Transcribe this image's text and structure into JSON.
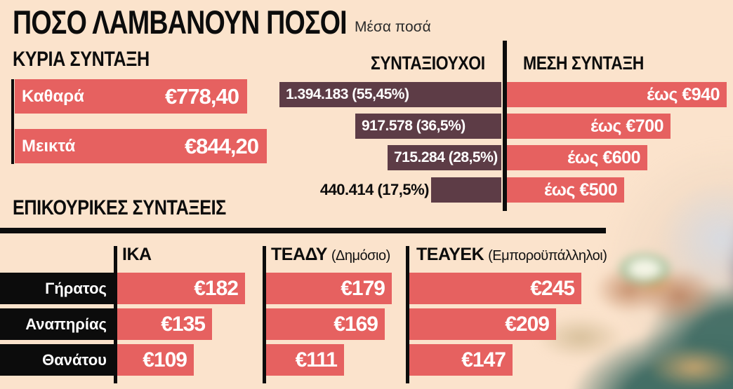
{
  "title": "ΠΟΣΟ ΛΑΜΒΑΝΟΥΝ ΠΟΣΟΙ",
  "subtitle": "Μέσα ποσά",
  "colors": {
    "background": "#fbe3cc",
    "bar_salmon": "#e66160",
    "bar_maroon": "#5d3c46",
    "black": "#0c0c0c",
    "text_on_bar": "#ffffff"
  },
  "photo": {
    "alt": "hands counting euro banknotes over a table"
  },
  "main_pension": {
    "heading": "ΚΥΡΙΑ ΣΥΝΤΑΞΗ",
    "rows": [
      {
        "label": "Καθαρά",
        "value": "€778,40",
        "value_num": 778.4
      },
      {
        "label": "Μεικτά",
        "value": "€844,20",
        "value_num": 844.2
      }
    ]
  },
  "distribution": {
    "col_pensioners": "ΣΥΝΤΑΞΙΟΥΧΟΙ",
    "col_avg": "ΜΕΣΗ ΣΥΝΤΑΞΗ",
    "rows": [
      {
        "pensioners": "1.394.183 (55,45%)",
        "pct_num": 55.45,
        "avg": "έως €940",
        "eur_num": 940
      },
      {
        "pensioners": "917.578 (36,5%)",
        "pct_num": 36.5,
        "avg": "έως €700",
        "eur_num": 700
      },
      {
        "pensioners": "715.284 (28,5%)",
        "pct_num": 28.5,
        "avg": "έως €600",
        "eur_num": 600
      },
      {
        "pensioners": "440.414 (17,5%)",
        "pct_num": 17.5,
        "avg": "έως €500",
        "eur_num": 500
      }
    ]
  },
  "supplementary": {
    "heading": "ΕΠΙΚΟΥΡΙΚΕΣ ΣΥΝΤΑΞΕΙΣ",
    "row_labels": [
      "Γήρατος",
      "Αναπηρίας",
      "Θανάτου"
    ],
    "columns": [
      {
        "name": "ΙΚΑ",
        "note": "",
        "values": [
          "€182",
          "€135",
          "€109"
        ],
        "values_num": [
          182,
          135,
          109
        ]
      },
      {
        "name": "ΤΕΑΔΥ",
        "note": "(Δημόσιο)",
        "values": [
          "€179",
          "€169",
          "€111"
        ],
        "values_num": [
          179,
          169,
          111
        ]
      },
      {
        "name": "ΤΕΑΥΕΚ",
        "note": "(Εμποροϋπάλληλοι)",
        "values": [
          "€245",
          "€209",
          "€147"
        ],
        "values_num": [
          245,
          209,
          147
        ]
      }
    ]
  },
  "chart_data": [
    {
      "type": "bar",
      "title": "ΚΥΡΙΑ ΣΥΝΤΑΞΗ (Μέσα ποσά)",
      "categories": [
        "Καθαρά",
        "Μεικτά"
      ],
      "values": [
        778.4,
        844.2
      ],
      "xlabel": "",
      "ylabel": "EUR",
      "unit": "€",
      "orientation": "horizontal",
      "grid": false
    },
    {
      "type": "bar",
      "title": "ΣΥΝΤΑΞΙΟΥΧΟΙ / ΜΕΣΗ ΣΥΝΤΑΞΗ",
      "categories": [
        "έως €940",
        "έως €700",
        "έως €600",
        "έως €500"
      ],
      "series": [
        {
          "name": "ΣΥΝΤΑΞΙΟΥΧΟΙ (πλήθος)",
          "values": [
            1394183,
            917578,
            715284,
            440414
          ]
        },
        {
          "name": "ΣΥΝΤΑΞΙΟΥΧΟΙ (%)",
          "values": [
            55.45,
            36.5,
            28.5,
            17.5
          ]
        },
        {
          "name": "ΜΕΣΗ ΣΥΝΤΑΞΗ (EUR)",
          "values": [
            940,
            700,
            600,
            500
          ]
        }
      ],
      "orientation": "horizontal",
      "grid": false,
      "legend_position": "top"
    },
    {
      "type": "bar",
      "title": "ΕΠΙΚΟΥΡΙΚΕΣ ΣΥΝΤΑΞΕΙΣ",
      "categories": [
        "Γήρατος",
        "Αναπηρίας",
        "Θανάτου"
      ],
      "series": [
        {
          "name": "ΙΚΑ",
          "values": [
            182,
            135,
            109
          ]
        },
        {
          "name": "ΤΕΑΔΥ (Δημόσιο)",
          "values": [
            179,
            169,
            111
          ]
        },
        {
          "name": "ΤΕΑΥΕΚ (Εμποροϋπάλληλοι)",
          "values": [
            245,
            209,
            147
          ]
        }
      ],
      "unit": "€",
      "orientation": "horizontal",
      "grid": false
    }
  ]
}
